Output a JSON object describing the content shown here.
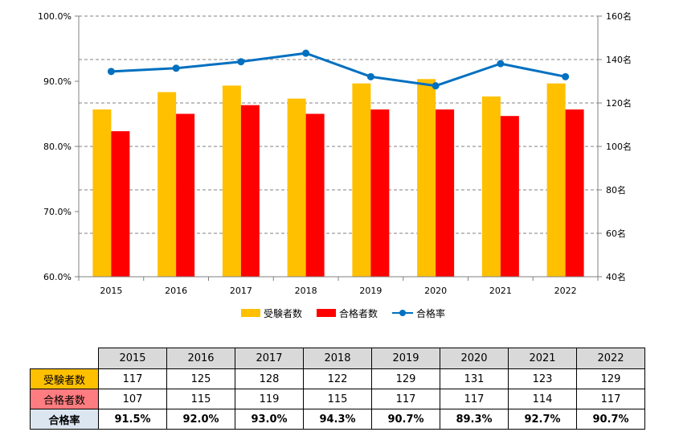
{
  "chart_data": {
    "type": "bar",
    "categories": [
      "2015",
      "2016",
      "2017",
      "2018",
      "2019",
      "2020",
      "2021",
      "2022"
    ],
    "series": [
      {
        "name": "受験者数",
        "kind": "bar",
        "axis": "right",
        "color": "#ffc000",
        "values": [
          117,
          125,
          128,
          122,
          129,
          131,
          123,
          129
        ]
      },
      {
        "name": "合格者数",
        "kind": "bar",
        "axis": "right",
        "color": "#ff0000",
        "values": [
          107,
          115,
          119,
          115,
          117,
          117,
          114,
          117
        ]
      },
      {
        "name": "合格率",
        "kind": "line",
        "axis": "left",
        "color": "#0070c0",
        "values": [
          91.5,
          92.0,
          93.0,
          94.3,
          90.7,
          89.3,
          92.7,
          90.7
        ]
      }
    ],
    "y_left": {
      "min": 60,
      "max": 100,
      "ticks": [
        "60.0%",
        "70.0%",
        "80.0%",
        "90.0%",
        "100.0%"
      ]
    },
    "y_right": {
      "min": 40,
      "max": 160,
      "ticks": [
        "40名",
        "60名",
        "80名",
        "100名",
        "120名",
        "140名",
        "160名"
      ]
    },
    "grid": true,
    "legend_position": "bottom"
  },
  "table": {
    "years": [
      "2015",
      "2016",
      "2017",
      "2018",
      "2019",
      "2020",
      "2021",
      "2022"
    ],
    "rows": [
      {
        "label": "受験者数",
        "label_bg": "#ffc000",
        "values": [
          "117",
          "125",
          "128",
          "122",
          "129",
          "131",
          "123",
          "129"
        ]
      },
      {
        "label": "合格者数",
        "label_bg": "#ff7c80",
        "values": [
          "107",
          "115",
          "119",
          "115",
          "117",
          "117",
          "114",
          "117"
        ]
      },
      {
        "label": "合格率",
        "label_bg": "#dce6f1",
        "values": [
          "91.5%",
          "92.0%",
          "93.0%",
          "94.3%",
          "90.7%",
          "89.3%",
          "92.7%",
          "90.7%"
        ]
      }
    ]
  }
}
